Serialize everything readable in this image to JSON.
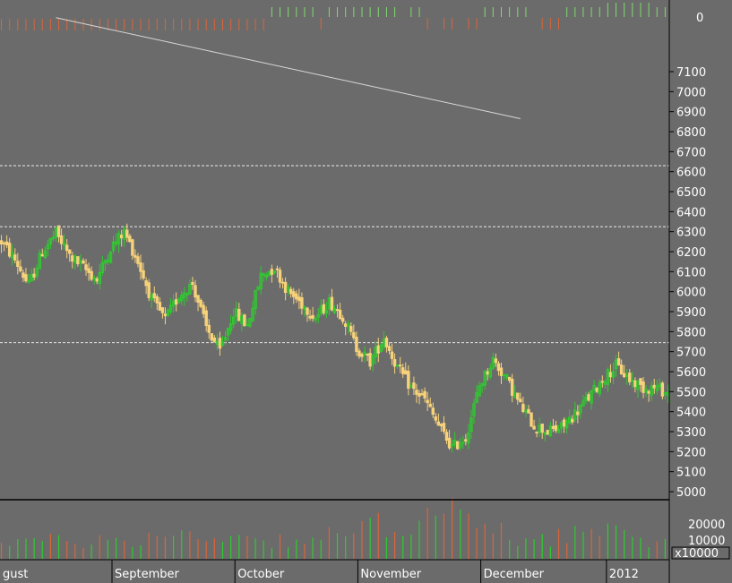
{
  "chart_data": {
    "type": "candlestick",
    "title": "",
    "xlabel": "",
    "ylabel": "",
    "price_ylim": [
      4950,
      7200
    ],
    "price_ticks": [
      5000,
      5100,
      5200,
      5300,
      5400,
      5500,
      5600,
      5700,
      5800,
      5900,
      6000,
      6100,
      6200,
      6300,
      6400,
      6500,
      6600,
      6700,
      6800,
      6900,
      7000,
      7100
    ],
    "reference_lines": [
      5745,
      6325,
      6630
    ],
    "trendline": {
      "from": [
        20,
        7370
      ],
      "to": [
        190,
        6865
      ]
    },
    "indicator_zero_label": "0",
    "volume_ticks": [
      "10000",
      "20000"
    ],
    "volume_unit": "x10000",
    "month_labels": [
      {
        "label": "gust",
        "index": 0
      },
      {
        "label": "September",
        "index": 41
      },
      {
        "label": "October",
        "index": 86
      },
      {
        "label": "November",
        "index": 131
      },
      {
        "label": "December",
        "index": 176
      },
      {
        "label": "2012",
        "index": 222
      }
    ],
    "n_bars": 245,
    "colors": {
      "background": "#6b6b6b",
      "up": "#2ecc2e",
      "down": "#f7d27a",
      "volume_up": "#2ecc2e",
      "volume_down": "#d9663a",
      "indicator_up": "#7ddc6a",
      "indicator_down": "#d9663a",
      "gridline": "#ffffff",
      "text": "#ffffff"
    },
    "anchors": [
      [
        0,
        6250
      ],
      [
        5,
        6160
      ],
      [
        10,
        6030
      ],
      [
        15,
        6200
      ],
      [
        20,
        6290
      ],
      [
        25,
        6180
      ],
      [
        30,
        6120
      ],
      [
        35,
        6060
      ],
      [
        40,
        6220
      ],
      [
        45,
        6300
      ],
      [
        50,
        6150
      ],
      [
        55,
        5960
      ],
      [
        60,
        5860
      ],
      [
        65,
        5980
      ],
      [
        70,
        6040
      ],
      [
        75,
        5820
      ],
      [
        80,
        5700
      ],
      [
        85,
        5900
      ],
      [
        90,
        5830
      ],
      [
        95,
        6080
      ],
      [
        100,
        6120
      ],
      [
        105,
        6000
      ],
      [
        110,
        5940
      ],
      [
        115,
        5870
      ],
      [
        120,
        5950
      ],
      [
        125,
        5880
      ],
      [
        130,
        5720
      ],
      [
        135,
        5650
      ],
      [
        140,
        5770
      ],
      [
        145,
        5620
      ],
      [
        150,
        5520
      ],
      [
        155,
        5460
      ],
      [
        160,
        5330
      ],
      [
        165,
        5220
      ],
      [
        170,
        5270
      ],
      [
        175,
        5530
      ],
      [
        180,
        5660
      ],
      [
        185,
        5560
      ],
      [
        190,
        5430
      ],
      [
        195,
        5330
      ],
      [
        200,
        5300
      ],
      [
        205,
        5320
      ],
      [
        210,
        5390
      ],
      [
        215,
        5470
      ],
      [
        220,
        5560
      ],
      [
        225,
        5630
      ],
      [
        230,
        5560
      ],
      [
        235,
        5520
      ],
      [
        240,
        5520
      ],
      [
        244,
        5490
      ]
    ],
    "volume_anchors": [
      [
        0,
        1100
      ],
      [
        20,
        900
      ],
      [
        40,
        1000
      ],
      [
        60,
        1200
      ],
      [
        80,
        1300
      ],
      [
        100,
        1000
      ],
      [
        120,
        1200
      ],
      [
        130,
        1500
      ],
      [
        140,
        1800
      ],
      [
        150,
        2200
      ],
      [
        160,
        2600
      ],
      [
        165,
        2400
      ],
      [
        170,
        1800
      ],
      [
        180,
        1500
      ],
      [
        190,
        1100
      ],
      [
        200,
        1200
      ],
      [
        210,
        1400
      ],
      [
        220,
        1300
      ],
      [
        230,
        1200
      ],
      [
        244,
        1000
      ]
    ]
  }
}
